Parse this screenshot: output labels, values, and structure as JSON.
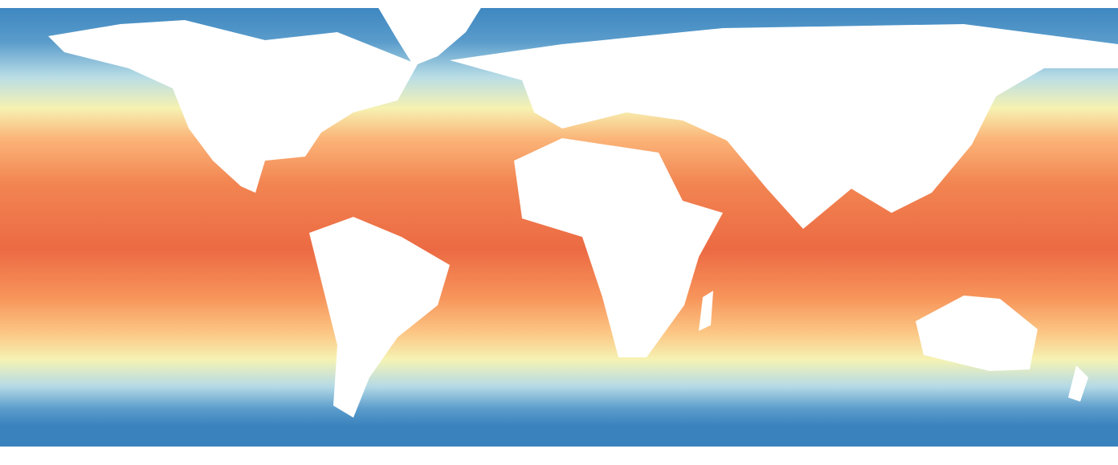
{
  "map": {
    "projection": "equirectangular",
    "land_color": "#ffffff",
    "color_scale": [
      "#2f7bb8",
      "#6aa8d0",
      "#bfe0e8",
      "#f8f6b4",
      "#fdc57f",
      "#f79a5c",
      "#ec6a43",
      "#d9352a"
    ]
  }
}
